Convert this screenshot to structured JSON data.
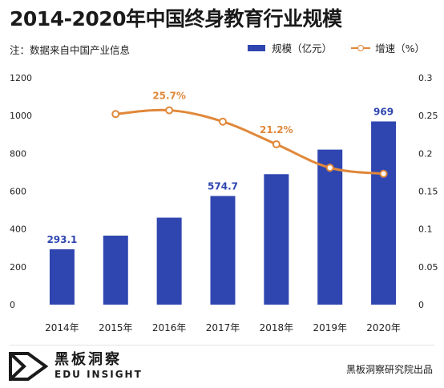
{
  "title": "2014-2020年中国终身教育行业规模",
  "note": "注：数据来自中国产业信息",
  "legend": {
    "bar_label": "规模（亿元）",
    "line_label": "增速（%）"
  },
  "footer": {
    "brand_cn": "黑板洞察",
    "brand_en": "EDU INSIGHT",
    "source": "黑板洞察研究院出品"
  },
  "colors": {
    "bar": "#2f46b0",
    "line": "#e0883a",
    "bar_label": "#2f46b0",
    "line_label": "#e0883a"
  },
  "chart_data": {
    "type": "bar",
    "categories": [
      "2014年",
      "2015年",
      "2016年",
      "2017年",
      "2018年",
      "2019年",
      "2020年"
    ],
    "series": [
      {
        "name": "规模（亿元）",
        "type": "bar",
        "axis": "left",
        "values": [
          293.1,
          365,
          460,
          574.7,
          690,
          820,
          969
        ],
        "data_labels": [
          "293.1",
          "",
          "",
          "574.7",
          "",
          "",
          "969"
        ]
      },
      {
        "name": "增速（%）",
        "type": "line",
        "axis": "right",
        "values": [
          null,
          0.252,
          0.257,
          0.242,
          0.212,
          0.181,
          0.173
        ],
        "data_labels": [
          "",
          "",
          "25.7%",
          "",
          "21.2%",
          "",
          ""
        ]
      }
    ],
    "y_left": {
      "ylim": [
        0,
        1200
      ],
      "ticks": [
        "0",
        "200",
        "400",
        "600",
        "800",
        "1000",
        "1200"
      ]
    },
    "y_right": {
      "ylim": [
        0,
        0.3
      ],
      "ticks": [
        "0",
        "0.05",
        "0.1",
        "0.15",
        "0.2",
        "0.25",
        "0.3"
      ]
    },
    "grid": false,
    "legend_position": "top-right"
  }
}
